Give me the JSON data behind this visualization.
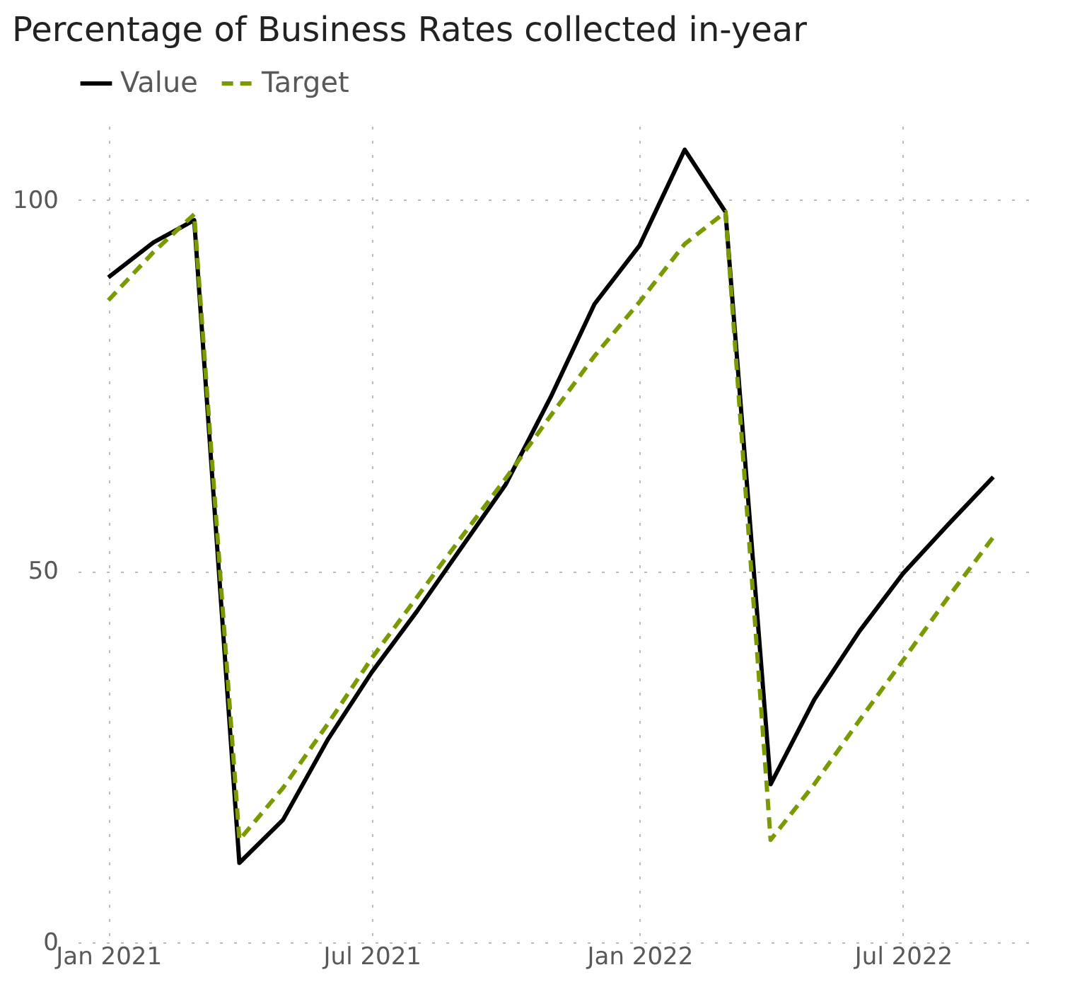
{
  "chart_data": {
    "type": "line",
    "title": "Percentage of Business Rates collected in-year",
    "x": [
      "2021-01",
      "2021-02",
      "2021-03",
      "2021-04",
      "2021-05",
      "2021-06",
      "2021-07",
      "2021-08",
      "2021-09",
      "2021-10",
      "2021-11",
      "2021-12",
      "2022-01",
      "2022-02",
      "2022-03",
      "2022-04",
      "2022-05",
      "2022-06",
      "2022-07",
      "2022-08",
      "2022-09"
    ],
    "series": [
      {
        "name": "Value",
        "color": "#000000",
        "line_style": "solid",
        "values": [
          89.6,
          94.3,
          97.3,
          10.7,
          16.5,
          27.4,
          36.4,
          44.6,
          53.3,
          61.7,
          73.5,
          86,
          93.9,
          106.8,
          98.4,
          21.3,
          32.7,
          41.9,
          49.7,
          56.3,
          62.7
        ]
      },
      {
        "name": "Target",
        "color": "#7a9a01",
        "line_style": "dashed",
        "values": [
          86.5,
          93,
          98.1,
          13.8,
          20.8,
          29.5,
          38.3,
          46.5,
          54.7,
          62.5,
          71,
          79,
          86.3,
          94.1,
          98.4,
          13.8,
          21.3,
          29.9,
          38,
          46.5,
          54.6
        ]
      }
    ],
    "xlim": [
      "2020-12-11",
      "2022-09-25"
    ],
    "xticks": [
      {
        "value": "2021-01",
        "label": "Jan 2021"
      },
      {
        "value": "2021-07",
        "label": "Jul 2021"
      },
      {
        "value": "2022-01",
        "label": "Jan 2022"
      },
      {
        "value": "2022-07",
        "label": "Jul 2022"
      }
    ],
    "ylim": [
      0,
      110
    ],
    "yticks": [
      0,
      50,
      100
    ],
    "grid": true,
    "legend": "top left"
  }
}
